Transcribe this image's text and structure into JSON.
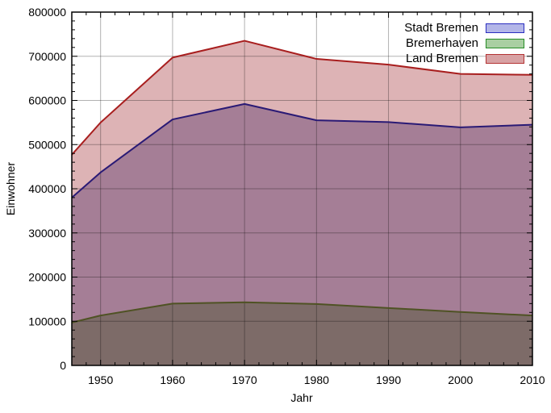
{
  "chart_data": {
    "type": "area",
    "title": "",
    "xlabel": "Jahr",
    "ylabel": "Einwohner",
    "x": [
      1946,
      1950,
      1960,
      1970,
      1980,
      1990,
      2000,
      2010
    ],
    "series": [
      {
        "name": "Stadt Bremen",
        "values": [
          380000,
          437000,
          557000,
          592000,
          555000,
          551000,
          539000,
          545000
        ],
        "line_color": "#2a1a75",
        "area_color": "#a57e96",
        "legend_fill": "#b3b6e8",
        "legend_border": "#2a2ec0"
      },
      {
        "name": "Bremerhaven",
        "values": [
          97000,
          113000,
          140000,
          143000,
          139000,
          130000,
          121000,
          113000
        ],
        "line_color": "#4f5224",
        "area_color": "#7d6b68",
        "legend_fill": "#a9cfa2",
        "legend_border": "#268c26"
      },
      {
        "name": "Land Bremen",
        "values": [
          477000,
          550000,
          697000,
          735000,
          694000,
          681000,
          660000,
          658000
        ],
        "line_color": "#a81e1e",
        "area_color": "#ddb3b5",
        "legend_fill": "#d8a2a4",
        "legend_border": "#b43434"
      }
    ],
    "draw_order": [
      2,
      0,
      1
    ],
    "xlim": [
      1946,
      2010
    ],
    "ylim": [
      0,
      800000
    ],
    "x_ticks": [
      1950,
      1960,
      1970,
      1980,
      1990,
      2000,
      2010
    ],
    "x_tick_labels": [
      "1950",
      "1960",
      "1970",
      "1980",
      "1990",
      "2000",
      "2010"
    ],
    "x_minor_step": 2,
    "y_ticks": [
      0,
      100000,
      200000,
      300000,
      400000,
      500000,
      600000,
      700000,
      800000
    ],
    "y_tick_labels": [
      "0",
      "100000",
      "200000",
      "300000",
      "400000",
      "500000",
      "600000",
      "700000",
      "800000"
    ],
    "y_minor_step": 20000,
    "grid": true,
    "grid_color": "rgba(0,0,0,0.30)",
    "legend_position": "top-right",
    "background": "#ffffff"
  }
}
